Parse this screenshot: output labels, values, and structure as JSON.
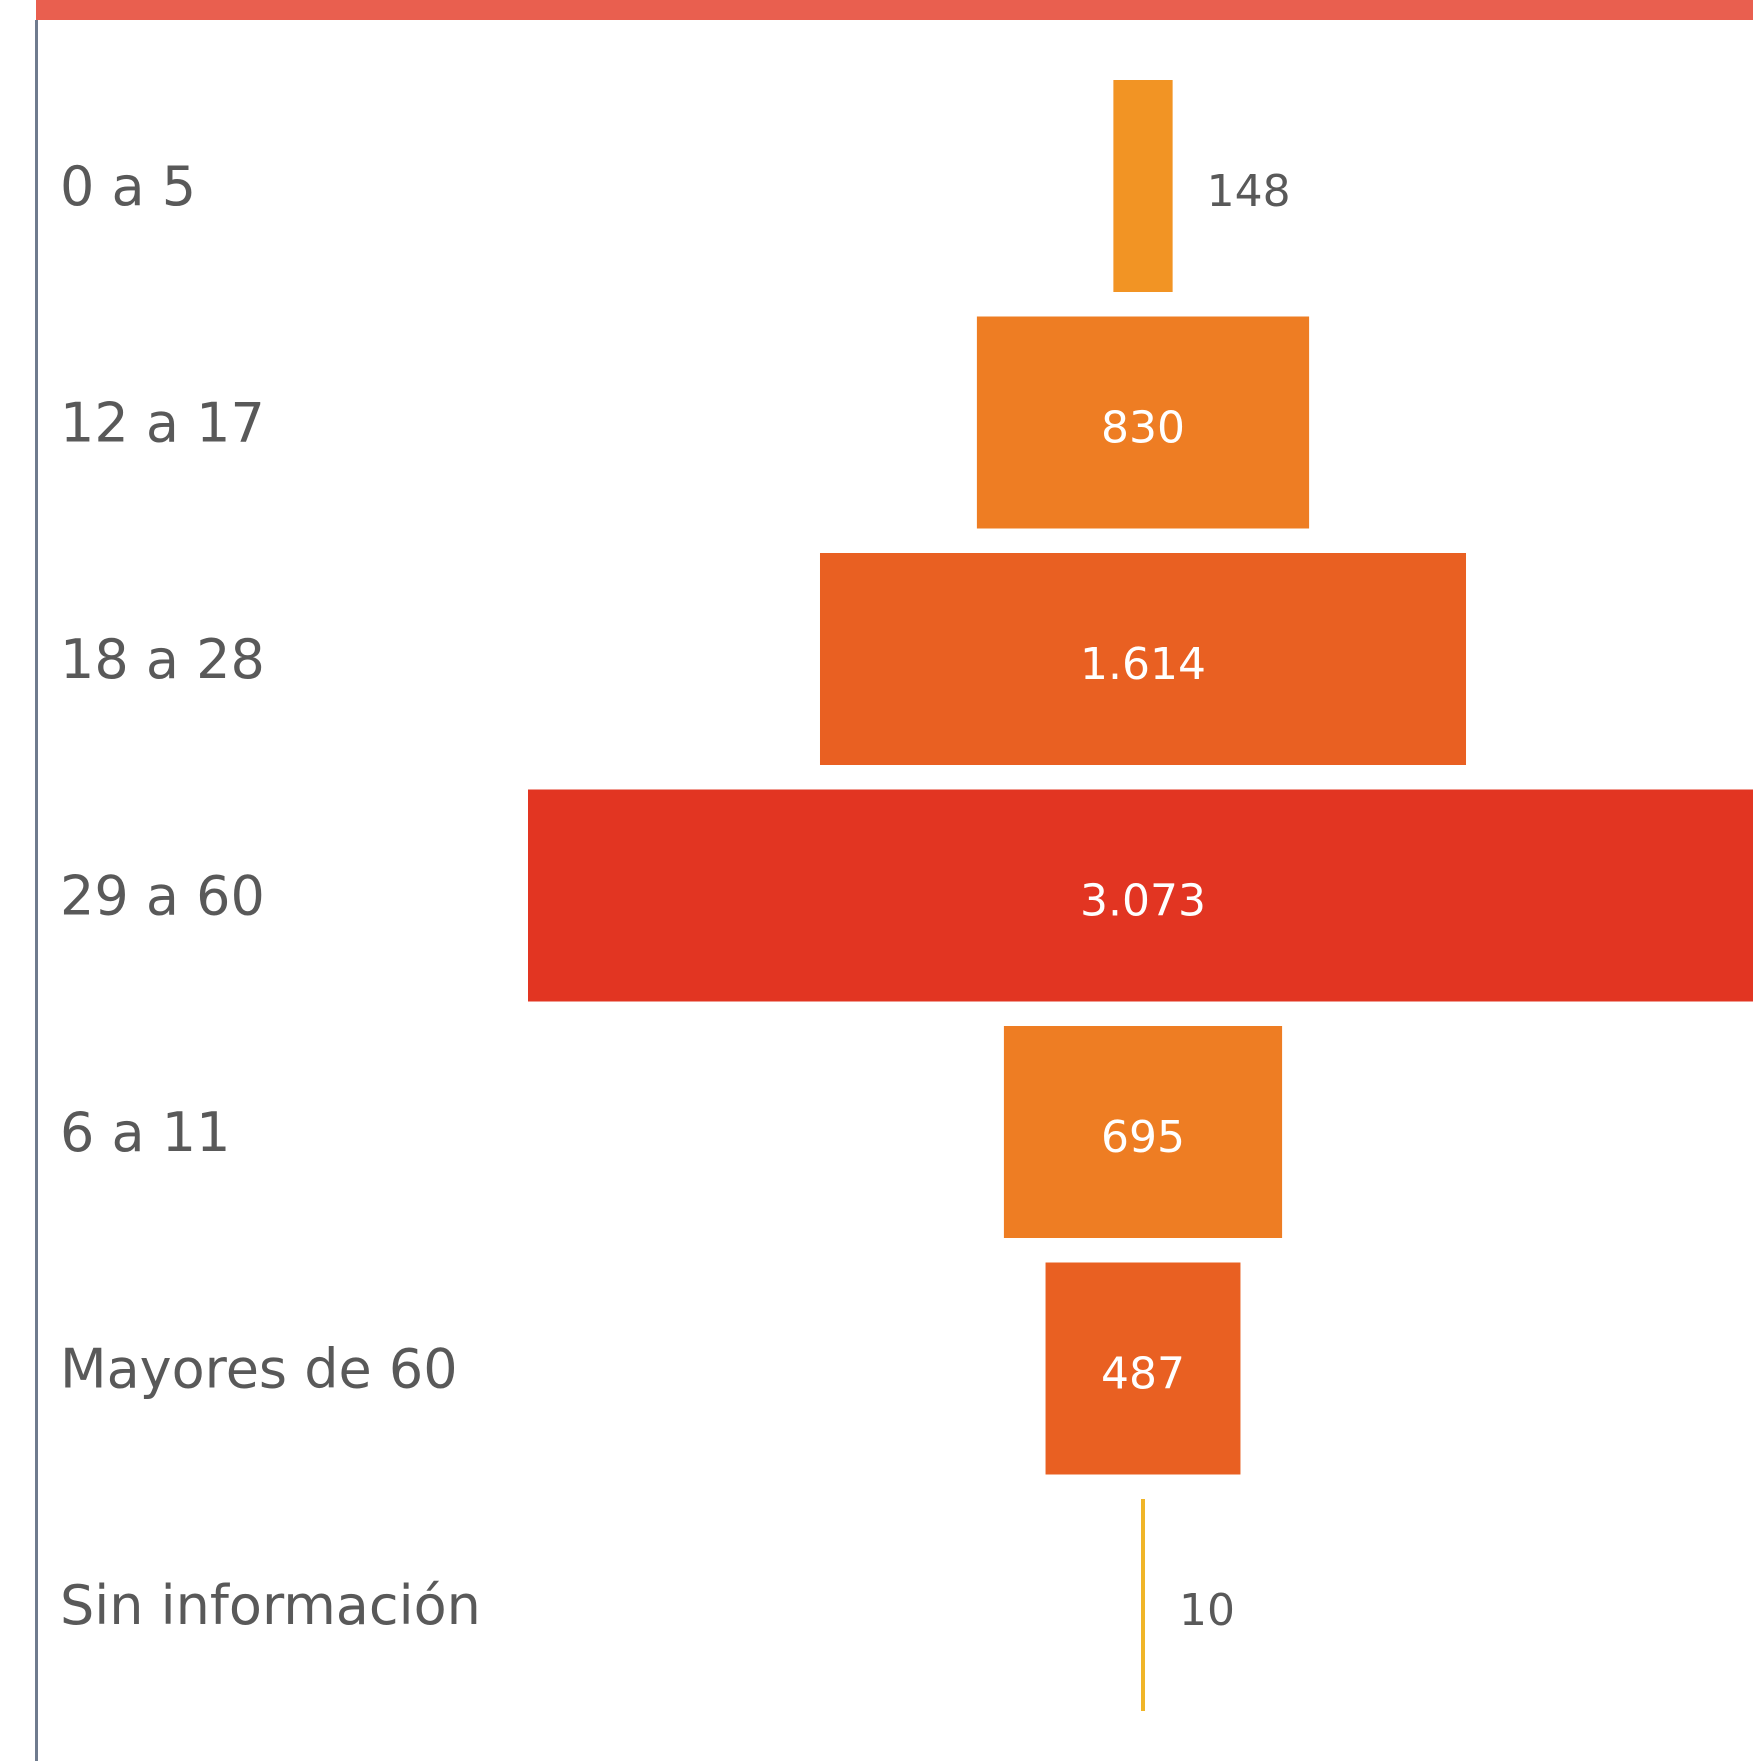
{
  "chart_data": {
    "type": "bar",
    "orientation": "horizontal",
    "style": "funnel",
    "categories": [
      "0 a 5",
      "12 a 17",
      "18 a 28",
      "29 a 60",
      "6 a 11",
      "Mayores de 60",
      "Sin información"
    ],
    "values": [
      148,
      830,
      1614,
      3073,
      695,
      487,
      10
    ],
    "value_labels": [
      "148",
      "830",
      "1.614",
      "3.073",
      "695",
      "487",
      "10"
    ],
    "colors": [
      "#f29424",
      "#ee7d23",
      "#e96022",
      "#e23522",
      "#ee7d23",
      "#e96022",
      "#f0b528"
    ],
    "grid": false,
    "legend": "none"
  },
  "frame": {
    "top_bar_color": "#e95f4f",
    "border_color": "#6f7b8e"
  }
}
